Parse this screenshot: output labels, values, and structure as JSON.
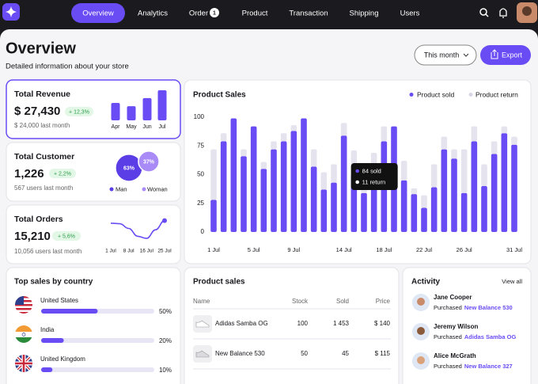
{
  "nav": {
    "items": [
      "Overview",
      "Analytics",
      "Order",
      "Product",
      "Transaction",
      "Shipping",
      "Users"
    ],
    "order_badge": "1"
  },
  "header": {
    "title": "Overview",
    "subtitle": "Detailed information about your store",
    "period": "This month",
    "export": "Export"
  },
  "revenue": {
    "title": "Total Revenue",
    "value": "$ 27,430",
    "change": "+ 12,3%",
    "note": "$ 24,000 last month",
    "chart_data": {
      "type": "bar",
      "categories": [
        "Apr",
        "May",
        "Jun",
        "Jul"
      ],
      "values": [
        58,
        47,
        74,
        100
      ],
      "color": "#6a4cf5"
    }
  },
  "customer": {
    "title": "Total Customer",
    "value": "1,226",
    "change": "+ 2,2%",
    "note": "567 users last month",
    "chart_data": {
      "type": "bubble",
      "categories": [
        "Man",
        "Woman"
      ],
      "values": [
        63,
        37
      ],
      "value_labels": [
        "63%",
        "37%"
      ],
      "colors": [
        "#5b3ee6",
        "#a98bf8"
      ]
    }
  },
  "orders": {
    "title": "Total Orders",
    "value": "15,210",
    "change": "+ 5,6%",
    "note": "10,056 users last month",
    "chart_data": {
      "type": "line",
      "categories": [
        "1 Jul",
        null,
        "8 Jul",
        null,
        "16 Jul",
        null,
        "25 Jul"
      ],
      "values": [
        70,
        68,
        50,
        20,
        12,
        45,
        80
      ],
      "color": "#6a4cf5"
    }
  },
  "sales": {
    "chart_data": {
      "type": "stacked-bar",
      "title": "Product Sales",
      "categories": [
        "1 Jul",
        null,
        null,
        null,
        "5 Jul",
        null,
        null,
        null,
        "9 Jul",
        null,
        null,
        null,
        null,
        "14 Jul",
        null,
        null,
        null,
        "18 Jul",
        null,
        null,
        null,
        "22 Jul",
        null,
        null,
        null,
        "26 Jul",
        null,
        null,
        null,
        null,
        "31 Jul"
      ],
      "series": [
        {
          "name": "Product sold",
          "color": "#6a4cf5",
          "values": [
            28,
            79,
            99,
            66,
            92,
            55,
            72,
            79,
            88,
            99,
            57,
            37,
            43,
            84,
            50,
            34,
            57,
            79,
            92,
            45,
            33,
            21,
            39,
            72,
            64,
            34,
            79,
            40,
            68,
            86,
            76
          ]
        },
        {
          "name": "Product return",
          "color": "#e4e3ee",
          "values": [
            44,
            7,
            0,
            6,
            0,
            6,
            7,
            7,
            5,
            0,
            15,
            15,
            16,
            11,
            21,
            16,
            12,
            13,
            0,
            17,
            5,
            11,
            20,
            11,
            8,
            38,
            13,
            19,
            11,
            6,
            7
          ]
        }
      ],
      "ylim": [
        0,
        100
      ],
      "yticks": [
        0,
        25,
        50,
        75,
        100
      ],
      "legend": "top-right",
      "tooltip": {
        "index": 13,
        "lines": [
          "84 sold",
          "11 return"
        ]
      }
    }
  },
  "countries": {
    "title": "Top sales by country",
    "chart_data": {
      "type": "progress",
      "categories": [
        "United States",
        "India",
        "United Kingdom"
      ],
      "values": [
        50,
        20,
        10
      ],
      "value_labels": [
        "50%",
        "20%",
        "10%"
      ],
      "color": "#6a4cf5",
      "xlim": [
        0,
        100
      ]
    }
  },
  "table": {
    "title": "Product sales",
    "columns": [
      "Name",
      "Stock",
      "Sold",
      "Price"
    ],
    "rows": [
      [
        "Adidas Samba OG",
        "100",
        "1 453",
        "$ 140"
      ],
      [
        "New Balance 530",
        "50",
        "45",
        "$ 115"
      ]
    ]
  },
  "activity": {
    "title": "Activity",
    "view_all": "View all",
    "items": [
      {
        "name": "Jane Cooper",
        "action": "Purchased",
        "product": "New Balance 530"
      },
      {
        "name": "Jeremy Wilson",
        "action": "Purchased",
        "product": "Adidas Samba OG"
      },
      {
        "name": "Alice McGrath",
        "action": "Purchased",
        "product": "New Balance 327"
      }
    ]
  }
}
